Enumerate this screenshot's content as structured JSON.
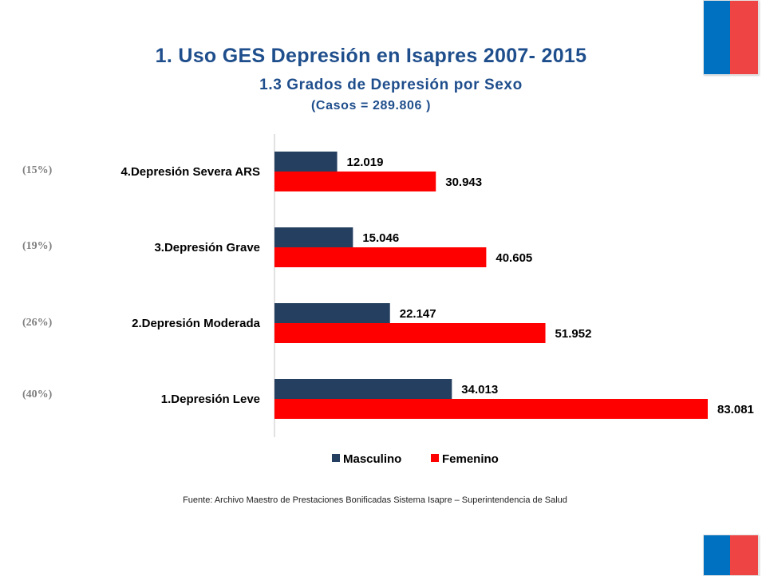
{
  "header": {
    "title": "1. Uso GES Depresión en Isapres 2007- 2015",
    "subtitle": "1.3 Grados de Depresión por Sexo",
    "cases": "(Casos = 289.806 )"
  },
  "colors": {
    "title": "#1f4e8c",
    "male": "#243f60",
    "female": "#ff0000",
    "flag_blue": "#0070c0",
    "flag_red": "#ef4444"
  },
  "percentages": [
    "(15%)",
    "(19%)",
    "(26%)",
    "(40%)"
  ],
  "chart_data": {
    "type": "bar",
    "orientation": "horizontal",
    "categories": [
      "4.Depresión Severa ARS",
      "3.Depresión Grave",
      "2.Depresión Moderada",
      "1.Depresión Leve"
    ],
    "series": [
      {
        "name": "Masculino",
        "values": [
          12019,
          15046,
          22147,
          34013
        ],
        "labels": [
          "12.019",
          "15.046",
          "22.147",
          "34.013"
        ]
      },
      {
        "name": "Femenino",
        "values": [
          30943,
          40605,
          51952,
          83081
        ],
        "labels": [
          "30.943",
          "40.605",
          "51.952",
          "83.081"
        ]
      }
    ],
    "legend_position": "bottom",
    "grid": false
  },
  "footer": "Fuente: Archivo Maestro de Prestaciones Bonificadas Sistema Isapre – Superintendencia de Salud"
}
